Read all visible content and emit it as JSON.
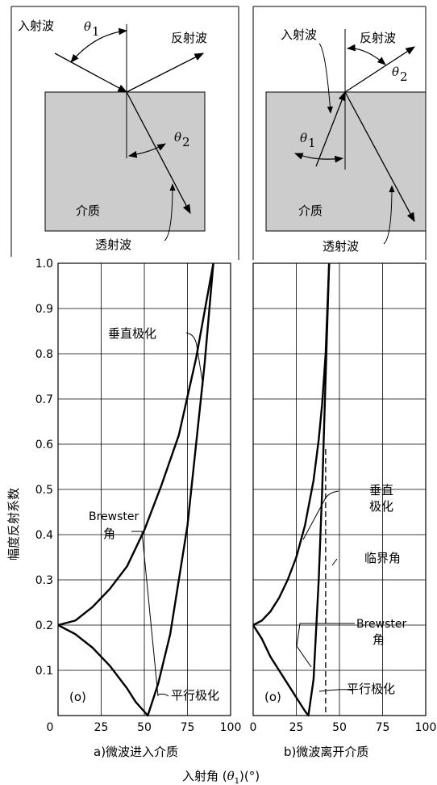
{
  "top_left": {
    "incident": "入射波",
    "reflected": "反射波",
    "medium": "介质",
    "transmitted": "透射波",
    "theta1": "θ",
    "theta1_sub": "1",
    "theta2": "θ",
    "theta2_sub": "2"
  },
  "top_right": {
    "incident": "入射波",
    "reflected": "反射波",
    "medium": "介质",
    "transmitted": "透射波",
    "theta1": "θ",
    "theta1_sub": "1",
    "theta2": "θ",
    "theta2_sub": "2"
  },
  "annotations": {
    "perp_left": "垂直极化",
    "brewster_l1": "Brewster",
    "brewster_l2": "角",
    "parallel_left": "平行极化",
    "o_left": "(o)",
    "perp_right_1": "垂直",
    "perp_right_2": "极化",
    "critical": "临界角",
    "brewster_r1": "Brewster",
    "brewster_r2": "角",
    "parallel_right": "平行极化",
    "o_right": "(o)"
  },
  "captions": {
    "left": "a)微波进入介质",
    "right": "b)微波离开介质",
    "xlabel_main": "入射角 (",
    "xlabel_theta": "θ",
    "xlabel_sub": "1",
    "xlabel_tail": ")(°)",
    "ylabel": "幅度反射系数"
  },
  "chart_data": [
    {
      "type": "line",
      "title": "a)微波进入介质",
      "xlim": [
        0,
        100
      ],
      "ylim": [
        0,
        1.0
      ],
      "x_ticks": [
        "0",
        "25",
        "50",
        "75",
        "100"
      ],
      "y_ticks": [
        "0.1",
        "0.2",
        "0.3",
        "0.4",
        "0.5",
        "0.6",
        "0.7",
        "0.8",
        "0.9",
        "1.0"
      ],
      "grid": true,
      "series": [
        {
          "name": "垂直极化",
          "x": [
            0,
            10,
            20,
            30,
            40,
            50,
            60,
            70,
            80,
            90
          ],
          "y": [
            0.2,
            0.21,
            0.24,
            0.28,
            0.33,
            0.41,
            0.51,
            0.62,
            0.79,
            1.0
          ]
        },
        {
          "name": "平行极化",
          "x": [
            0,
            10,
            20,
            30,
            40,
            45,
            52,
            58,
            65,
            75,
            85,
            90
          ],
          "y": [
            0.2,
            0.18,
            0.15,
            0.11,
            0.06,
            0.03,
            0.0,
            0.07,
            0.18,
            0.42,
            0.78,
            1.0
          ]
        }
      ],
      "annotations": [
        "垂直极化",
        "Brewster 角",
        "平行极化"
      ]
    },
    {
      "type": "line",
      "title": "b)微波离开介质",
      "xlim": [
        0,
        100
      ],
      "ylim": [
        0,
        1.0
      ],
      "x_ticks": [
        "0",
        "25",
        "50",
        "75",
        "100"
      ],
      "y_ticks": [
        "0.1",
        "0.2",
        "0.3",
        "0.4",
        "0.5",
        "0.6",
        "0.7",
        "0.8",
        "0.9",
        "1.0"
      ],
      "grid": true,
      "series": [
        {
          "name": "垂直极化",
          "x": [
            0,
            5,
            10,
            15,
            20,
            25,
            30,
            35,
            38,
            40,
            42,
            44
          ],
          "y": [
            0.2,
            0.21,
            0.23,
            0.26,
            0.3,
            0.35,
            0.42,
            0.52,
            0.61,
            0.69,
            0.8,
            1.0
          ]
        },
        {
          "name": "平行极化",
          "x": [
            0,
            5,
            10,
            15,
            20,
            25,
            30,
            32,
            35,
            38,
            40,
            42,
            44
          ],
          "y": [
            0.2,
            0.17,
            0.13,
            0.1,
            0.07,
            0.04,
            0.01,
            0.0,
            0.08,
            0.3,
            0.5,
            0.75,
            1.0
          ]
        }
      ],
      "critical_angle": 42,
      "annotations": [
        "垂直极化",
        "临界角",
        "Brewster 角",
        "平行极化"
      ]
    }
  ]
}
